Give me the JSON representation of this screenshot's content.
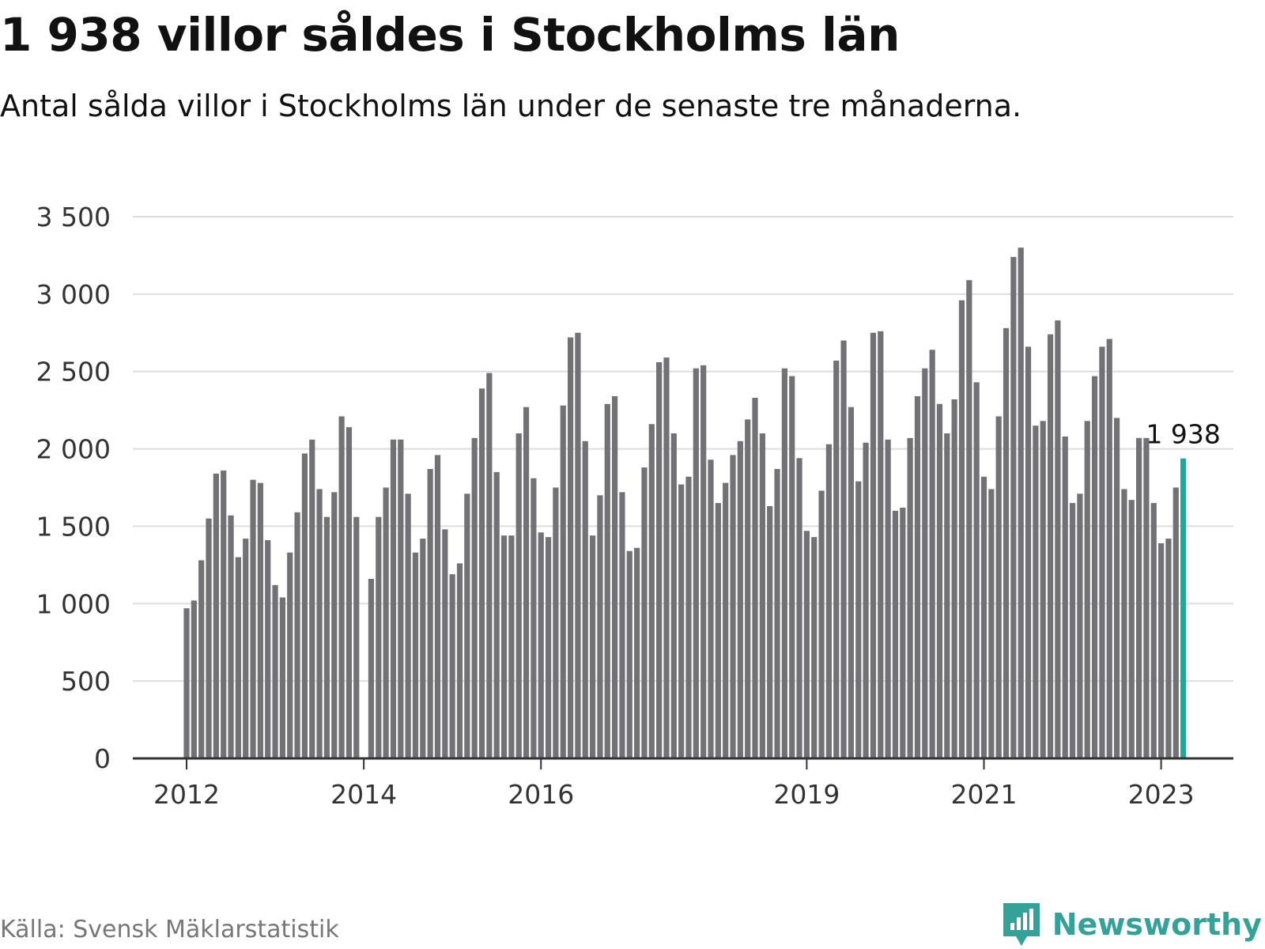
{
  "header": {
    "title": "1 938 villor såldes i Stockholms län",
    "subtitle": "Antal sålda villor i Stockholms län under de senaste tre månaderna."
  },
  "footer": {
    "source": "Källa: Svensk Mäklarstatistik",
    "brand": "Newsworthy",
    "brand_icon": "bar-chart-speech-icon"
  },
  "colors": {
    "bar": "#727176",
    "highlight": "#1aab9b",
    "grid": "#dddddd",
    "axis": "#333333",
    "brand": "#35a29a"
  },
  "chart_data": {
    "type": "bar",
    "title": "1 938 villor såldes i Stockholms län",
    "subtitle": "Antal sålda villor i Stockholms län under de senaste tre månaderna.",
    "xlabel": "",
    "ylabel": "",
    "ylim": [
      0,
      3500
    ],
    "yticks": [
      0,
      500,
      1000,
      1500,
      2000,
      2500,
      3000,
      3500
    ],
    "ytick_labels": [
      "0",
      "500",
      "1 000",
      "1 500",
      "2 000",
      "2 500",
      "3 000",
      "3 500"
    ],
    "grid": true,
    "x_start": "2011-12",
    "x_interval": "month",
    "xticks": [
      {
        "index": 0,
        "label": "2012"
      },
      {
        "index": 24,
        "label": "2014"
      },
      {
        "index": 48,
        "label": "2016"
      },
      {
        "index": 84,
        "label": "2019"
      },
      {
        "index": 108,
        "label": "2021"
      },
      {
        "index": 132,
        "label": "2023"
      }
    ],
    "values": [
      970,
      1020,
      1280,
      1550,
      1840,
      1860,
      1570,
      1300,
      1420,
      1800,
      1780,
      1410,
      1120,
      1040,
      1330,
      1590,
      1970,
      2060,
      1740,
      1560,
      1720,
      2210,
      2140,
      1560,
      0,
      1160,
      1560,
      1750,
      2060,
      2060,
      1710,
      1330,
      1420,
      1870,
      1960,
      1480,
      1190,
      1260,
      1710,
      2070,
      2390,
      2490,
      1850,
      1440,
      1440,
      2100,
      2270,
      1810,
      1460,
      1430,
      1750,
      2280,
      2720,
      2750,
      2050,
      1440,
      1700,
      2290,
      2340,
      1720,
      1340,
      1360,
      1880,
      2160,
      2560,
      2590,
      2100,
      1770,
      1820,
      2520,
      2540,
      1930,
      1650,
      1780,
      1960,
      2050,
      2190,
      2330,
      2100,
      1630,
      1870,
      2520,
      2470,
      1940,
      1470,
      1430,
      1730,
      2030,
      2570,
      2700,
      2270,
      1790,
      2040,
      2750,
      2760,
      2060,
      1600,
      1620,
      2070,
      2340,
      2520,
      2640,
      2290,
      2100,
      2320,
      2960,
      3090,
      2430,
      1820,
      1740,
      2210,
      2780,
      3240,
      3300,
      2660,
      2150,
      2180,
      2740,
      2830,
      2080,
      1650,
      1710,
      2180,
      2470,
      2660,
      2710,
      2200,
      1740,
      1670,
      2070,
      2070,
      1650,
      1390,
      1420,
      1750,
      1938
    ],
    "highlight_index": 135,
    "annotation": {
      "index": 135,
      "text": "1 938"
    }
  }
}
